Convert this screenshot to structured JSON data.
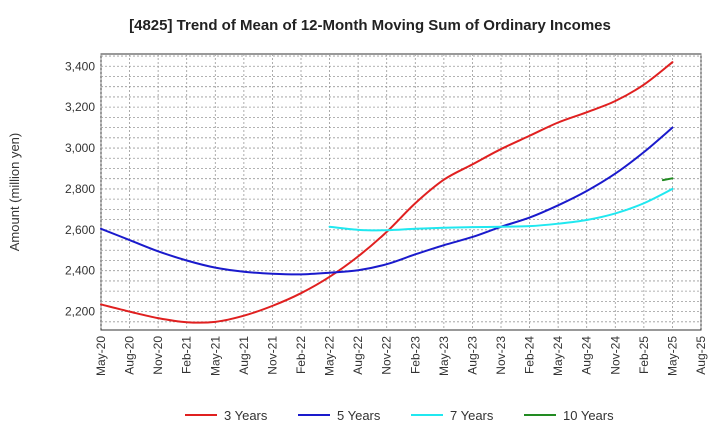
{
  "chart_data": {
    "type": "line",
    "title": "[4825]  Trend of Mean of 12-Month Moving Sum of Ordinary Incomes",
    "xlabel": "",
    "ylabel": "Amount (million yen)",
    "ylim": [
      2110,
      3460
    ],
    "yticks": [
      2200,
      2400,
      2600,
      2800,
      3000,
      3200,
      3400
    ],
    "ytick_labels": [
      "2,200",
      "2,400",
      "2,600",
      "2,800",
      "3,000",
      "3,200",
      "3,400"
    ],
    "x_range_months": [
      0,
      63
    ],
    "xticks": [
      {
        "label": "May-20",
        "m": 0
      },
      {
        "label": "Aug-20",
        "m": 3
      },
      {
        "label": "Nov-20",
        "m": 6
      },
      {
        "label": "Feb-21",
        "m": 9
      },
      {
        "label": "May-21",
        "m": 12
      },
      {
        "label": "Aug-21",
        "m": 15
      },
      {
        "label": "Nov-21",
        "m": 18
      },
      {
        "label": "Feb-22",
        "m": 21
      },
      {
        "label": "May-22",
        "m": 24
      },
      {
        "label": "Aug-22",
        "m": 27
      },
      {
        "label": "Nov-22",
        "m": 30
      },
      {
        "label": "Feb-23",
        "m": 33
      },
      {
        "label": "May-23",
        "m": 36
      },
      {
        "label": "Aug-23",
        "m": 39
      },
      {
        "label": "Nov-23",
        "m": 42
      },
      {
        "label": "Feb-24",
        "m": 45
      },
      {
        "label": "May-24",
        "m": 48
      },
      {
        "label": "Aug-24",
        "m": 51
      },
      {
        "label": "Nov-24",
        "m": 54
      },
      {
        "label": "Feb-25",
        "m": 57
      },
      {
        "label": "May-25",
        "m": 60
      },
      {
        "label": "Aug-25",
        "m": 63
      }
    ],
    "grid": true,
    "series": [
      {
        "name": "3 Years",
        "color": "#e02020",
        "points": [
          [
            0,
            2235
          ],
          [
            3,
            2200
          ],
          [
            6,
            2168
          ],
          [
            9,
            2148
          ],
          [
            12,
            2150
          ],
          [
            15,
            2180
          ],
          [
            18,
            2228
          ],
          [
            21,
            2290
          ],
          [
            24,
            2370
          ],
          [
            27,
            2470
          ],
          [
            30,
            2590
          ],
          [
            33,
            2730
          ],
          [
            36,
            2845
          ],
          [
            39,
            2920
          ],
          [
            42,
            2995
          ],
          [
            45,
            3060
          ],
          [
            48,
            3125
          ],
          [
            51,
            3175
          ],
          [
            54,
            3230
          ],
          [
            57,
            3310
          ],
          [
            60,
            3420
          ]
        ]
      },
      {
        "name": "5 Years",
        "color": "#1a1acc",
        "points": [
          [
            0,
            2605
          ],
          [
            3,
            2550
          ],
          [
            6,
            2495
          ],
          [
            9,
            2450
          ],
          [
            12,
            2415
          ],
          [
            15,
            2395
          ],
          [
            18,
            2385
          ],
          [
            21,
            2382
          ],
          [
            24,
            2390
          ],
          [
            27,
            2402
          ],
          [
            30,
            2432
          ],
          [
            33,
            2480
          ],
          [
            36,
            2525
          ],
          [
            39,
            2565
          ],
          [
            42,
            2615
          ],
          [
            45,
            2660
          ],
          [
            48,
            2720
          ],
          [
            51,
            2790
          ],
          [
            54,
            2875
          ],
          [
            57,
            2980
          ],
          [
            60,
            3100
          ]
        ]
      },
      {
        "name": "7 Years",
        "color": "#20e8f0",
        "points": [
          [
            24,
            2615
          ],
          [
            27,
            2600
          ],
          [
            30,
            2598
          ],
          [
            33,
            2605
          ],
          [
            36,
            2610
          ],
          [
            39,
            2613
          ],
          [
            42,
            2615
          ],
          [
            45,
            2618
          ],
          [
            48,
            2630
          ],
          [
            51,
            2648
          ],
          [
            54,
            2680
          ],
          [
            57,
            2730
          ],
          [
            60,
            2800
          ]
        ]
      },
      {
        "name": "10 Years",
        "color": "#228b22",
        "points": [
          [
            59,
            2843
          ],
          [
            60,
            2852
          ]
        ]
      }
    ]
  }
}
